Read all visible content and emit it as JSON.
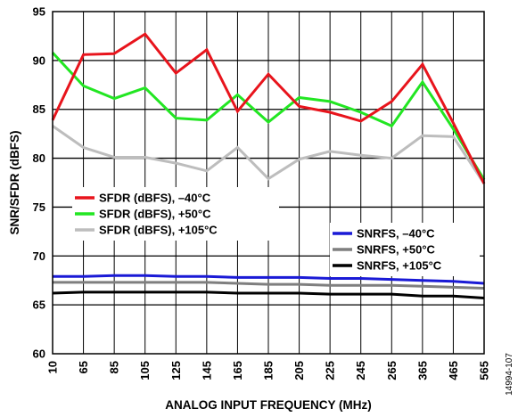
{
  "chart_data": {
    "type": "line",
    "xlabel": "ANALOG INPUT FREQUENCY (MHz)",
    "ylabel": "SNR/SFDR (dBFS)",
    "categories": [
      "10",
      "65",
      "85",
      "105",
      "125",
      "145",
      "165",
      "185",
      "205",
      "225",
      "245",
      "265",
      "365",
      "465",
      "565"
    ],
    "ylim": [
      60,
      95
    ],
    "yticks": [
      60,
      65,
      70,
      75,
      80,
      85,
      90,
      95
    ],
    "grid": true,
    "series": [
      {
        "name": "SFDR (dBFS), –40°C",
        "color": "#e8141c",
        "values": [
          83.9,
          90.6,
          90.7,
          92.7,
          88.7,
          91.1,
          84.8,
          88.6,
          85.3,
          84.7,
          83.8,
          85.8,
          89.6,
          83.6,
          77.4
        ]
      },
      {
        "name": "SFDR (dBFS), +50°C",
        "color": "#22e622",
        "values": [
          90.8,
          87.4,
          86.1,
          87.2,
          84.1,
          83.9,
          86.5,
          83.7,
          86.2,
          85.8,
          84.7,
          83.3,
          87.8,
          83.0,
          77.8
        ]
      },
      {
        "name": "SFDR (dBFS), +105°C",
        "color": "#bdbdbd",
        "values": [
          83.3,
          81.1,
          80.1,
          80.1,
          79.5,
          78.7,
          81.1,
          77.9,
          79.9,
          80.7,
          80.3,
          80.0,
          82.3,
          82.2,
          77.4
        ]
      },
      {
        "name": "SNRFS, –40°C",
        "color": "#1a1ad6",
        "values": [
          67.9,
          67.9,
          68.0,
          68.0,
          67.9,
          67.9,
          67.8,
          67.8,
          67.8,
          67.7,
          67.7,
          67.6,
          67.5,
          67.4,
          67.2
        ]
      },
      {
        "name": "SNRFS, +50°C",
        "color": "#7f7f7f",
        "values": [
          67.3,
          67.3,
          67.3,
          67.3,
          67.3,
          67.3,
          67.2,
          67.1,
          67.1,
          67.0,
          67.0,
          67.0,
          66.9,
          66.8,
          66.7
        ]
      },
      {
        "name": "SNRFS, +105°C",
        "color": "#000000",
        "values": [
          66.2,
          66.3,
          66.3,
          66.3,
          66.3,
          66.3,
          66.2,
          66.2,
          66.2,
          66.1,
          66.1,
          66.1,
          65.9,
          65.9,
          65.7
        ]
      }
    ],
    "legends": [
      {
        "position": "middle-left",
        "series": [
          0,
          1,
          2
        ]
      },
      {
        "position": "middle-right",
        "series": [
          3,
          4,
          5
        ]
      }
    ],
    "figure_id": "14994-107"
  }
}
